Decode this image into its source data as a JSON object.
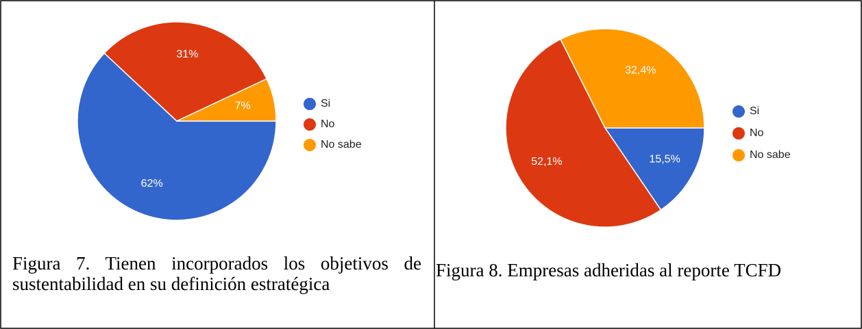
{
  "chart_data": [
    {
      "type": "pie",
      "caption": "Figura 7. Tienen incorporados los objetivos de sustentabilidad en su definición estratégica",
      "categories": [
        "Si",
        "No",
        "No sabe"
      ],
      "values": [
        62,
        31,
        7
      ],
      "value_labels": [
        "62%",
        "31%",
        "7%"
      ],
      "colors": [
        "#3366cc",
        "#dc3912",
        "#ff9900"
      ]
    },
    {
      "type": "pie",
      "caption": "Figura 8. Empresas adheridas al reporte TCFD",
      "categories": [
        "Si",
        "No",
        "No sabe"
      ],
      "values": [
        15.5,
        52.1,
        32.4
      ],
      "value_labels": [
        "15,5%",
        "52,1%",
        "32,4%"
      ],
      "colors": [
        "#3366cc",
        "#dc3912",
        "#ff9900"
      ]
    }
  ]
}
